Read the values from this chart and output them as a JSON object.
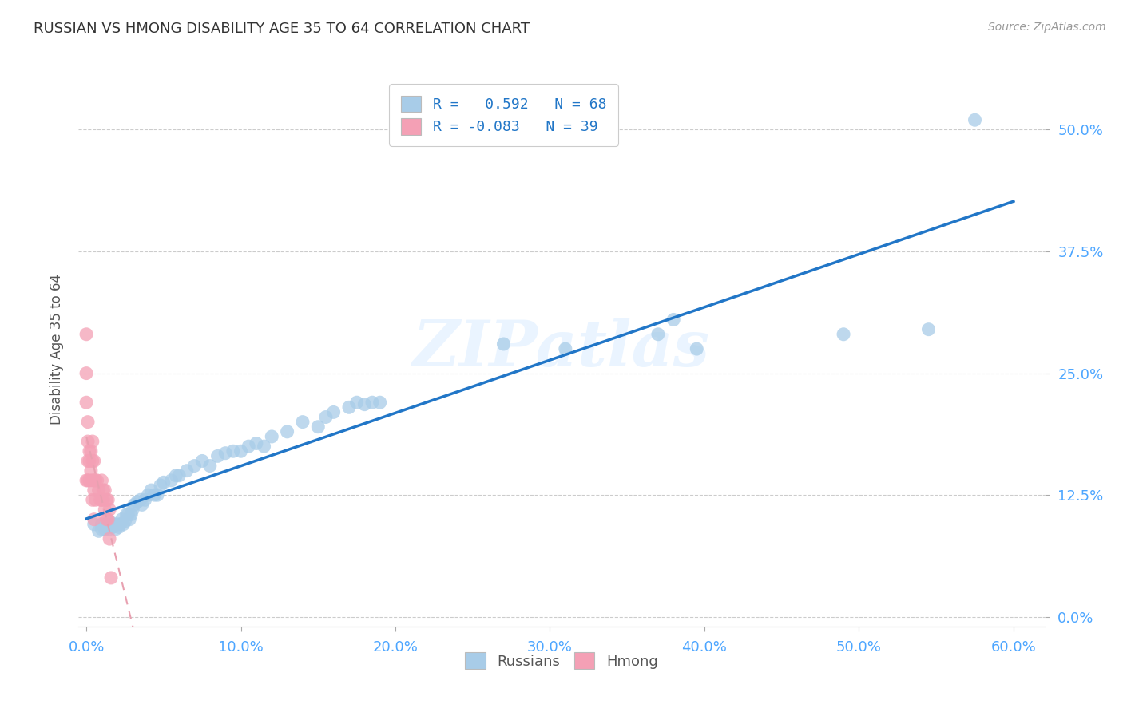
{
  "title": "RUSSIAN VS HMONG DISABILITY AGE 35 TO 64 CORRELATION CHART",
  "source": "Source: ZipAtlas.com",
  "xlabel_values": [
    0.0,
    0.1,
    0.2,
    0.3,
    0.4,
    0.5,
    0.6
  ],
  "ylabel_values": [
    0.0,
    0.125,
    0.25,
    0.375,
    0.5
  ],
  "xlim": [
    -0.005,
    0.62
  ],
  "ylim": [
    -0.01,
    0.56
  ],
  "russian_R": 0.592,
  "russian_N": 68,
  "hmong_R": -0.083,
  "hmong_N": 39,
  "russian_color": "#a8cce8",
  "hmong_color": "#f4a0b5",
  "russian_line_color": "#2176c7",
  "hmong_line_color": "#e07090",
  "background_color": "#ffffff",
  "grid_color": "#cccccc",
  "title_color": "#333333",
  "axis_label_color": "#555555",
  "tick_color": "#4da6ff",
  "legend_text_color": "#2176c7",
  "russians_x": [
    0.005,
    0.008,
    0.01,
    0.01,
    0.012,
    0.013,
    0.014,
    0.015,
    0.015,
    0.016,
    0.017,
    0.018,
    0.019,
    0.02,
    0.021,
    0.022,
    0.023,
    0.024,
    0.025,
    0.026,
    0.027,
    0.028,
    0.029,
    0.03,
    0.031,
    0.033,
    0.035,
    0.036,
    0.038,
    0.04,
    0.042,
    0.044,
    0.046,
    0.048,
    0.05,
    0.055,
    0.058,
    0.06,
    0.065,
    0.07,
    0.075,
    0.08,
    0.085,
    0.09,
    0.095,
    0.1,
    0.105,
    0.11,
    0.115,
    0.12,
    0.13,
    0.14,
    0.15,
    0.155,
    0.16,
    0.17,
    0.175,
    0.18,
    0.185,
    0.19,
    0.27,
    0.31,
    0.37,
    0.38,
    0.395,
    0.49,
    0.545,
    0.575
  ],
  "russians_y": [
    0.095,
    0.088,
    0.09,
    0.095,
    0.09,
    0.095,
    0.092,
    0.09,
    0.098,
    0.095,
    0.092,
    0.095,
    0.09,
    0.095,
    0.092,
    0.095,
    0.1,
    0.095,
    0.098,
    0.105,
    0.105,
    0.1,
    0.105,
    0.11,
    0.115,
    0.118,
    0.12,
    0.115,
    0.12,
    0.125,
    0.13,
    0.125,
    0.125,
    0.135,
    0.138,
    0.14,
    0.145,
    0.145,
    0.15,
    0.155,
    0.16,
    0.155,
    0.165,
    0.168,
    0.17,
    0.17,
    0.175,
    0.178,
    0.175,
    0.185,
    0.19,
    0.2,
    0.195,
    0.205,
    0.21,
    0.215,
    0.22,
    0.218,
    0.22,
    0.22,
    0.28,
    0.275,
    0.29,
    0.305,
    0.275,
    0.29,
    0.295,
    0.51
  ],
  "hmong_x": [
    0.0,
    0.0,
    0.0,
    0.0,
    0.001,
    0.001,
    0.001,
    0.001,
    0.002,
    0.002,
    0.002,
    0.003,
    0.003,
    0.004,
    0.004,
    0.004,
    0.004,
    0.005,
    0.005,
    0.005,
    0.005,
    0.006,
    0.006,
    0.007,
    0.008,
    0.009,
    0.01,
    0.01,
    0.011,
    0.011,
    0.012,
    0.012,
    0.013,
    0.013,
    0.014,
    0.014,
    0.015,
    0.015,
    0.016
  ],
  "hmong_y": [
    0.29,
    0.25,
    0.22,
    0.14,
    0.2,
    0.18,
    0.16,
    0.14,
    0.17,
    0.16,
    0.14,
    0.17,
    0.15,
    0.18,
    0.16,
    0.14,
    0.12,
    0.16,
    0.14,
    0.13,
    0.1,
    0.14,
    0.12,
    0.14,
    0.13,
    0.12,
    0.14,
    0.12,
    0.13,
    0.12,
    0.13,
    0.11,
    0.12,
    0.1,
    0.12,
    0.1,
    0.11,
    0.08,
    0.04
  ]
}
